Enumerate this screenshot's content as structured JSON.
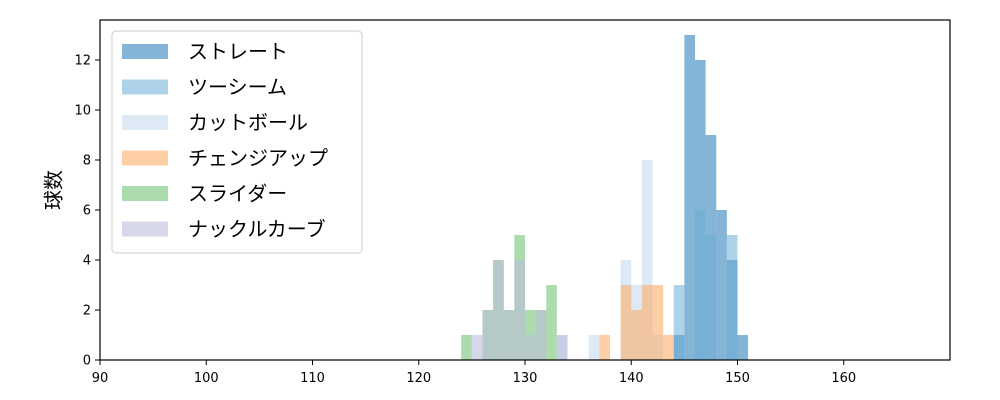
{
  "chart_data": {
    "type": "bar",
    "subtype": "overlapping-histogram",
    "ylabel": "球数",
    "xlabel": "",
    "title": "",
    "xlim": [
      90,
      170
    ],
    "ylim": [
      0,
      13.6
    ],
    "x_ticks": [
      90,
      100,
      110,
      120,
      130,
      140,
      150,
      160
    ],
    "y_ticks": [
      0,
      2,
      4,
      6,
      8,
      10,
      12
    ],
    "bin_width": 1,
    "legend_position": "top-left",
    "grid": false,
    "series": [
      {
        "name": "ストレート",
        "color": "#1f77b4",
        "opacity": 0.55,
        "bins": [
          {
            "x": 144,
            "count": 1
          },
          {
            "x": 145,
            "count": 13
          },
          {
            "x": 146,
            "count": 12
          },
          {
            "x": 147,
            "count": 9
          },
          {
            "x": 148,
            "count": 6
          },
          {
            "x": 149,
            "count": 4
          },
          {
            "x": 150,
            "count": 1
          }
        ]
      },
      {
        "name": "ツーシーム",
        "color": "#6baed6",
        "opacity": 0.55,
        "bins": [
          {
            "x": 144,
            "count": 3
          },
          {
            "x": 146,
            "count": 6
          },
          {
            "x": 147,
            "count": 5
          },
          {
            "x": 149,
            "count": 5
          }
        ]
      },
      {
        "name": "カットボール",
        "color": "#c6dbef",
        "opacity": 0.6,
        "bins": [
          {
            "x": 133,
            "count": 1
          },
          {
            "x": 136,
            "count": 1
          },
          {
            "x": 139,
            "count": 4
          },
          {
            "x": 140,
            "count": 3
          },
          {
            "x": 141,
            "count": 8
          },
          {
            "x": 142,
            "count": 1
          }
        ]
      },
      {
        "name": "チェンジアップ",
        "color": "#fdae6b",
        "opacity": 0.6,
        "bins": [
          {
            "x": 137,
            "count": 1
          },
          {
            "x": 139,
            "count": 3
          },
          {
            "x": 140,
            "count": 2
          },
          {
            "x": 141,
            "count": 3
          },
          {
            "x": 142,
            "count": 3
          },
          {
            "x": 143,
            "count": 1
          }
        ]
      },
      {
        "name": "スライダー",
        "color": "#74c476",
        "opacity": 0.6,
        "bins": [
          {
            "x": 124,
            "count": 1
          },
          {
            "x": 126,
            "count": 2
          },
          {
            "x": 127,
            "count": 4
          },
          {
            "x": 128,
            "count": 2
          },
          {
            "x": 129,
            "count": 5
          },
          {
            "x": 130,
            "count": 2
          },
          {
            "x": 131,
            "count": 2
          },
          {
            "x": 132,
            "count": 3
          }
        ]
      },
      {
        "name": "ナックルカーブ",
        "color": "#bcbddc",
        "opacity": 0.6,
        "bins": [
          {
            "x": 125,
            "count": 1
          },
          {
            "x": 126,
            "count": 2
          },
          {
            "x": 127,
            "count": 4
          },
          {
            "x": 128,
            "count": 2
          },
          {
            "x": 129,
            "count": 4
          },
          {
            "x": 130,
            "count": 1
          },
          {
            "x": 131,
            "count": 2
          },
          {
            "x": 133,
            "count": 1
          }
        ]
      }
    ]
  }
}
